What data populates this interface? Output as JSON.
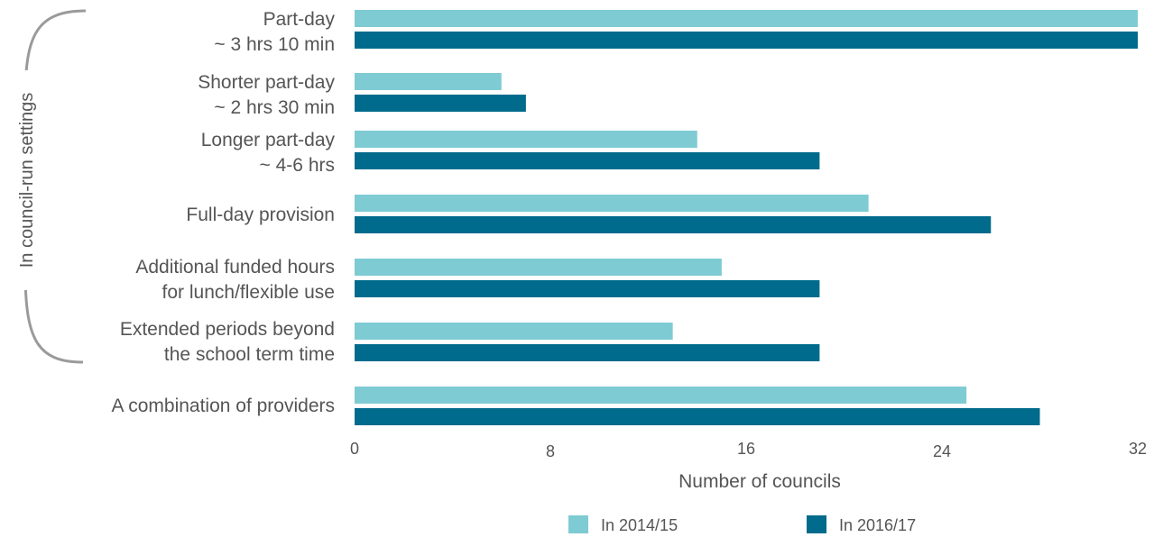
{
  "chart_data": {
    "type": "bar",
    "orientation": "horizontal",
    "categories": [
      [
        "Part-day",
        "~ 3 hrs 10 min"
      ],
      [
        "Shorter part-day",
        "~ 2 hrs 30 min"
      ],
      [
        "Longer part-day",
        "~ 4-6 hrs"
      ],
      [
        "Full-day provision"
      ],
      [
        "Additional funded hours",
        "for lunch/flexible use"
      ],
      [
        "Extended periods beyond",
        "the school term time"
      ],
      [
        "A combination of providers"
      ]
    ],
    "series": [
      {
        "name": "In 2014/15",
        "color": "#7ecbd3",
        "values": [
          32,
          6,
          14,
          21,
          15,
          13,
          25
        ]
      },
      {
        "name": "In 2016/17",
        "color": "#006b8c",
        "values": [
          32,
          7,
          19,
          26,
          19,
          19,
          28
        ]
      }
    ],
    "xlabel": "Number of councils",
    "xlim": [
      0,
      32
    ],
    "xticks": [
      "0",
      "8",
      "16",
      "24",
      "32"
    ],
    "group_label": "In council-run settings",
    "grid": false,
    "legend_position": "bottom"
  }
}
